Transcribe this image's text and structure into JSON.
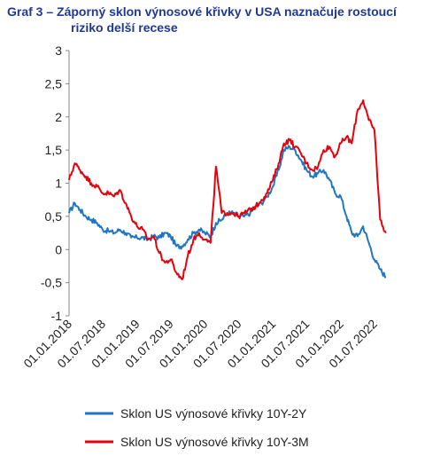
{
  "title_line1": "Graf 3 – Záporný sklon výnosové křivky v USA naznačuje rostoucí",
  "title_line2": "riziko delší recese",
  "colors": {
    "series_10y2y": "#1f77c4",
    "series_10y3m": "#e8000b",
    "axis": "#888888",
    "title": "#1f3a93"
  },
  "chart_data": {
    "type": "line",
    "title": "Graf 3 – Záporný sklon výnosové křivky v USA naznačuje rostoucí riziko delší recese",
    "ylim": [
      -1,
      3
    ],
    "yticks": [
      "3",
      "2,5",
      "2",
      "1,5",
      "1",
      "0,5",
      "0",
      "-0,5",
      "-1"
    ],
    "ytick_values": [
      3,
      2.5,
      2,
      1.5,
      1,
      0.5,
      0,
      -0.5,
      -1
    ],
    "xlim": [
      "2018-01-01",
      "2022-09-30"
    ],
    "xticks": [
      "01.01.2018",
      "01.07.2018",
      "01.01.2019",
      "01.07.2019",
      "01.01.2020",
      "01.07.2020",
      "01.01.2021",
      "01.07.2021",
      "01.01.2022",
      "01.07.2022"
    ],
    "xtick_dates": [
      "2018-01-01",
      "2018-07-01",
      "2019-01-01",
      "2019-07-01",
      "2020-01-01",
      "2020-07-01",
      "2021-01-01",
      "2021-07-01",
      "2022-01-01",
      "2022-07-01"
    ],
    "grid": false,
    "legend_position": "bottom",
    "series": [
      {
        "name": "Sklon US výnosové křivky 10Y-2Y",
        "color": "#1f77c4",
        "x": [
          "2018-01-01",
          "2018-02-01",
          "2018-03-01",
          "2018-04-01",
          "2018-05-01",
          "2018-06-01",
          "2018-07-01",
          "2018-08-01",
          "2018-09-01",
          "2018-10-01",
          "2018-11-01",
          "2018-12-01",
          "2019-01-01",
          "2019-02-01",
          "2019-03-01",
          "2019-04-01",
          "2019-05-01",
          "2019-06-01",
          "2019-07-01",
          "2019-08-01",
          "2019-09-01",
          "2019-10-01",
          "2019-11-01",
          "2019-12-01",
          "2020-01-01",
          "2020-02-01",
          "2020-03-01",
          "2020-04-01",
          "2020-05-01",
          "2020-06-01",
          "2020-07-01",
          "2020-08-01",
          "2020-09-01",
          "2020-10-01",
          "2020-11-01",
          "2020-12-01",
          "2021-01-01",
          "2021-02-01",
          "2021-03-01",
          "2021-04-01",
          "2021-05-01",
          "2021-06-01",
          "2021-07-01",
          "2021-08-01",
          "2021-09-01",
          "2021-10-01",
          "2021-11-01",
          "2021-12-01",
          "2022-01-01",
          "2022-02-01",
          "2022-03-01",
          "2022-04-01",
          "2022-05-01",
          "2022-06-01",
          "2022-07-01",
          "2022-08-01",
          "2022-09-01"
        ],
        "values": [
          0.55,
          0.7,
          0.6,
          0.5,
          0.45,
          0.4,
          0.3,
          0.28,
          0.25,
          0.3,
          0.25,
          0.18,
          0.18,
          0.18,
          0.15,
          0.2,
          0.18,
          0.25,
          0.2,
          0.05,
          0.05,
          0.15,
          0.25,
          0.3,
          0.25,
          0.2,
          0.4,
          0.45,
          0.55,
          0.55,
          0.5,
          0.5,
          0.55,
          0.65,
          0.7,
          0.8,
          0.95,
          1.2,
          1.5,
          1.55,
          1.5,
          1.35,
          1.2,
          1.1,
          1.15,
          1.2,
          1.05,
          0.85,
          0.8,
          0.5,
          0.25,
          0.2,
          0.35,
          0.1,
          -0.15,
          -0.3,
          -0.42
        ]
      },
      {
        "name": "Sklon US výnosové křivky 10Y-3M",
        "color": "#e8000b",
        "x": [
          "2018-01-01",
          "2018-02-01",
          "2018-03-01",
          "2018-04-01",
          "2018-05-01",
          "2018-06-01",
          "2018-07-01",
          "2018-08-01",
          "2018-09-01",
          "2018-10-01",
          "2018-11-01",
          "2018-12-01",
          "2019-01-01",
          "2019-02-01",
          "2019-03-01",
          "2019-04-01",
          "2019-05-01",
          "2019-06-01",
          "2019-07-01",
          "2019-08-01",
          "2019-09-01",
          "2019-10-01",
          "2019-11-01",
          "2019-12-01",
          "2020-01-01",
          "2020-02-01",
          "2020-03-01",
          "2020-04-01",
          "2020-05-01",
          "2020-06-01",
          "2020-07-01",
          "2020-08-01",
          "2020-09-01",
          "2020-10-01",
          "2020-11-01",
          "2020-12-01",
          "2021-01-01",
          "2021-02-01",
          "2021-03-01",
          "2021-04-01",
          "2021-05-01",
          "2021-06-01",
          "2021-07-01",
          "2021-08-01",
          "2021-09-01",
          "2021-10-01",
          "2021-11-01",
          "2021-12-01",
          "2022-01-01",
          "2022-02-01",
          "2022-03-01",
          "2022-04-01",
          "2022-05-01",
          "2022-06-01",
          "2022-07-01",
          "2022-08-01",
          "2022-09-01"
        ],
        "values": [
          1.05,
          1.3,
          1.2,
          1.1,
          1.0,
          0.95,
          0.85,
          0.85,
          0.8,
          0.9,
          0.7,
          0.5,
          0.35,
          0.3,
          0.15,
          0.2,
          -0.05,
          -0.2,
          -0.15,
          -0.35,
          -0.45,
          -0.1,
          0.15,
          0.25,
          0.15,
          0.1,
          1.25,
          0.55,
          0.55,
          0.55,
          0.5,
          0.55,
          0.6,
          0.65,
          0.75,
          0.85,
          1.05,
          1.3,
          1.6,
          1.65,
          1.55,
          1.45,
          1.3,
          1.2,
          1.25,
          1.5,
          1.55,
          1.4,
          1.6,
          1.7,
          1.6,
          2.1,
          2.25,
          1.95,
          1.8,
          0.45,
          0.25
        ]
      }
    ]
  }
}
